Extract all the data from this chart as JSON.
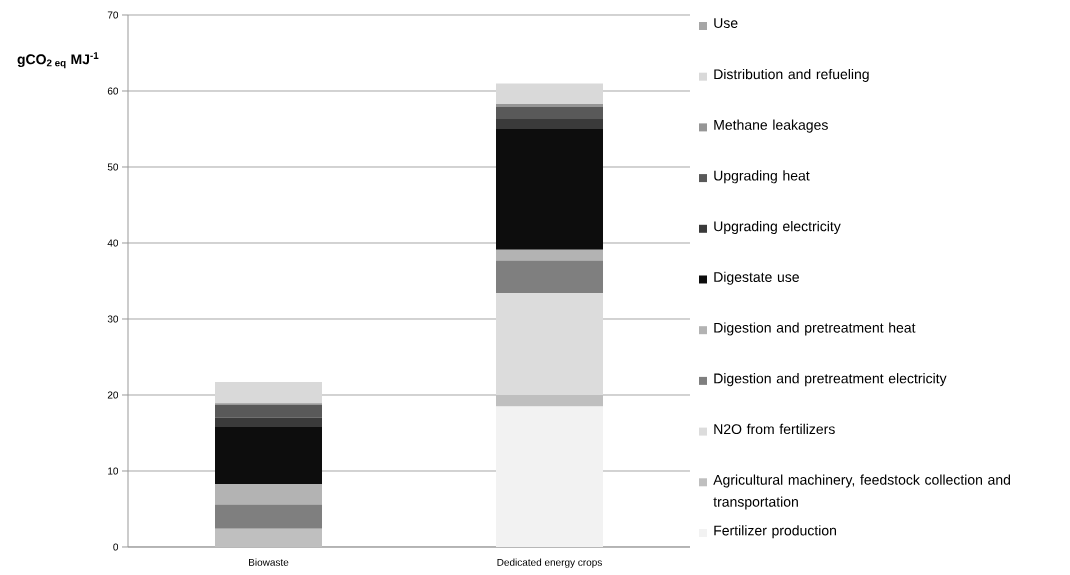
{
  "chart_data": {
    "type": "bar",
    "stacked": true,
    "ylabel": "gCO$_{2 eq}$ MJ$^{-1}$",
    "categories": [
      "Biowaste",
      "Dedicated energy crops"
    ],
    "ylim": [
      0,
      70
    ],
    "yticks": [
      0,
      10,
      20,
      30,
      40,
      50,
      60,
      70
    ],
    "grid": "y",
    "legend": "right",
    "series": [
      {
        "name": "Fertilizer production",
        "color": "#f2f2f2",
        "values": [
          0,
          18.5
        ]
      },
      {
        "name": "Agricultural machinery, feedstock collection and transportation",
        "color": "#bfbfbf",
        "values": [
          2.4,
          1.5
        ]
      },
      {
        "name": "N2O from fertilizers",
        "color": "#dcdcdc",
        "values": [
          0,
          13.4
        ]
      },
      {
        "name": "Digestion and pretreatment electricity",
        "color": "#7f7f7f",
        "values": [
          3.2,
          4.3
        ]
      },
      {
        "name": "Digestion and pretreatment heat",
        "color": "#b3b3b3",
        "values": [
          2.7,
          1.4
        ]
      },
      {
        "name": "Digestate use",
        "color": "#0d0d0d",
        "values": [
          7.5,
          15.9
        ]
      },
      {
        "name": "Upgrading electricity",
        "color": "#3a3a3a",
        "values": [
          1.2,
          1.3
        ]
      },
      {
        "name": "Upgrading heat",
        "color": "#595959",
        "values": [
          1.7,
          1.6
        ]
      },
      {
        "name": "Methane leakages",
        "color": "#969696",
        "values": [
          0.2,
          0.4
        ]
      },
      {
        "name": "Distribution and refueling",
        "color": "#d9d9d9",
        "values": [
          2.8,
          2.7
        ]
      },
      {
        "name": "Use",
        "color": "#a6a6a6",
        "values": [
          0,
          0
        ]
      }
    ]
  }
}
